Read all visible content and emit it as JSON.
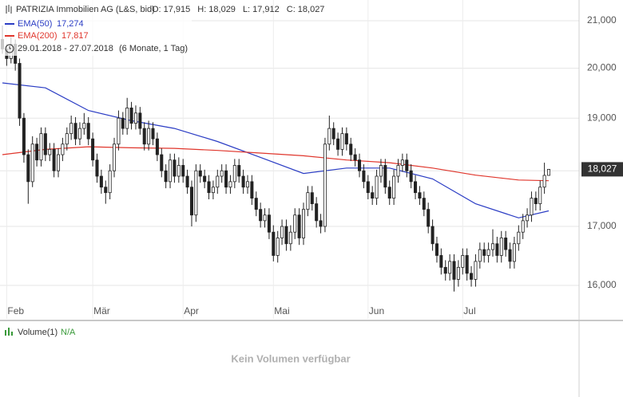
{
  "chart_data": {
    "type": "candlestick",
    "title": "PATRIZIA Immobilien AG (L&S, bid)",
    "quote": [
      {
        "label": "O:",
        "value": "17,915"
      },
      {
        "label": "H:",
        "value": "18,029"
      },
      {
        "label": "L:",
        "value": "17,912"
      },
      {
        "label": "C:",
        "value": "18,027"
      }
    ],
    "date_range": "29.01.2018 - 27.07.2018",
    "period": "(6 Monate, 1 Tag)",
    "last_price_label": "18,027",
    "last_price": 18027,
    "log_scale": true,
    "grid": true,
    "ylim": [
      15818,
      21452
    ],
    "yticks": [
      {
        "value": 21000,
        "label": "21,000"
      },
      {
        "value": 20000,
        "label": "20,000"
      },
      {
        "value": 19000,
        "label": "19,000"
      },
      {
        "value": 18000,
        "label": "18,000"
      },
      {
        "value": 17000,
        "label": "17,000"
      },
      {
        "value": 16000,
        "label": "16,000"
      }
    ],
    "months": [
      {
        "label": "Feb",
        "index": 1
      },
      {
        "label": "Mär",
        "index": 21
      },
      {
        "label": "Apr",
        "index": 42
      },
      {
        "label": "Mai",
        "index": 63
      },
      {
        "label": "Jun",
        "index": 85
      },
      {
        "label": "Jul",
        "index": 107
      }
    ],
    "candles": [
      [
        20600,
        20900,
        20300,
        20400
      ],
      [
        20400,
        20500,
        20050,
        20200
      ],
      [
        20200,
        20650,
        20100,
        20500
      ],
      [
        20500,
        20600,
        19950,
        20100
      ],
      [
        20100,
        20200,
        18850,
        19000
      ],
      [
        19000,
        19100,
        18150,
        18300
      ],
      [
        18300,
        18400,
        17400,
        17800
      ],
      [
        17800,
        18650,
        17700,
        18500
      ],
      [
        18500,
        18620,
        18080,
        18200
      ],
      [
        18200,
        18820,
        18080,
        18700
      ],
      [
        18700,
        18820,
        18180,
        18300
      ],
      [
        18300,
        18520,
        18180,
        18400
      ],
      [
        18400,
        18520,
        17880,
        18000
      ],
      [
        18000,
        18420,
        17880,
        18300
      ],
      [
        18300,
        18620,
        18180,
        18500
      ],
      [
        18500,
        18820,
        18380,
        18700
      ],
      [
        18700,
        19050,
        18580,
        18900
      ],
      [
        18900,
        19020,
        18480,
        18600
      ],
      [
        18600,
        18920,
        18480,
        18800
      ],
      [
        18800,
        19100,
        18680,
        18900
      ],
      [
        18900,
        19020,
        18480,
        18600
      ],
      [
        18600,
        18720,
        18080,
        18200
      ],
      [
        18200,
        18320,
        17780,
        17900
      ],
      [
        17900,
        18020,
        17580,
        17700
      ],
      [
        17700,
        17820,
        17400,
        17600
      ],
      [
        17600,
        18120,
        17480,
        18000
      ],
      [
        18000,
        18620,
        17880,
        18500
      ],
      [
        18500,
        19150,
        18380,
        19000
      ],
      [
        19000,
        19120,
        18680,
        18800
      ],
      [
        18800,
        19400,
        18680,
        19200
      ],
      [
        19200,
        19320,
        18780,
        18900
      ],
      [
        18900,
        19250,
        18780,
        19100
      ],
      [
        19100,
        19220,
        18680,
        18800
      ],
      [
        18800,
        18920,
        18380,
        18500
      ],
      [
        18500,
        18950,
        18380,
        18800
      ],
      [
        18800,
        18920,
        18480,
        18600
      ],
      [
        18600,
        18720,
        18180,
        18300
      ],
      [
        18300,
        18420,
        17880,
        18000
      ],
      [
        18000,
        18120,
        17680,
        17800
      ],
      [
        17800,
        18320,
        17680,
        18200
      ],
      [
        18200,
        18320,
        17780,
        17900
      ],
      [
        17900,
        18250,
        17780,
        18100
      ],
      [
        18100,
        18220,
        17780,
        17900
      ],
      [
        17900,
        18020,
        17580,
        17700
      ],
      [
        17700,
        17820,
        17000,
        17200
      ],
      [
        17200,
        18120,
        17080,
        18000
      ],
      [
        18000,
        18120,
        17780,
        17900
      ],
      [
        17900,
        18020,
        17680,
        17800
      ],
      [
        17800,
        17920,
        17480,
        17600
      ],
      [
        17600,
        17820,
        17480,
        17700
      ],
      [
        17700,
        18020,
        17580,
        17900
      ],
      [
        17900,
        18120,
        17780,
        18000
      ],
      [
        18000,
        18120,
        17580,
        17700
      ],
      [
        17700,
        17920,
        17580,
        17800
      ],
      [
        17800,
        18220,
        17680,
        18100
      ],
      [
        18100,
        18220,
        17780,
        17900
      ],
      [
        17900,
        18020,
        17580,
        17700
      ],
      [
        17700,
        17920,
        17580,
        17800
      ],
      [
        17800,
        17920,
        17380,
        17500
      ],
      [
        17500,
        17620,
        17180,
        17300
      ],
      [
        17300,
        17420,
        16980,
        17100
      ],
      [
        17100,
        17320,
        16980,
        17200
      ],
      [
        17200,
        17320,
        16780,
        16900
      ],
      [
        16900,
        17020,
        16400,
        16500
      ],
      [
        16500,
        16920,
        16380,
        16800
      ],
      [
        16800,
        17120,
        16680,
        17000
      ],
      [
        17000,
        17120,
        16580,
        16700
      ],
      [
        16700,
        17020,
        16580,
        16900
      ],
      [
        16900,
        17320,
        16780,
        17200
      ],
      [
        17200,
        17320,
        16680,
        16800
      ],
      [
        16800,
        17420,
        16680,
        17300
      ],
      [
        17300,
        17720,
        17180,
        17600
      ],
      [
        17600,
        17720,
        17280,
        17400
      ],
      [
        17400,
        17520,
        16980,
        17100
      ],
      [
        17100,
        17220,
        16880,
        17000
      ],
      [
        17000,
        18620,
        16900,
        18500
      ],
      [
        18500,
        19050,
        18380,
        18800
      ],
      [
        18800,
        18920,
        18480,
        18600
      ],
      [
        18600,
        18720,
        18280,
        18400
      ],
      [
        18400,
        18820,
        18280,
        18700
      ],
      [
        18700,
        18820,
        18380,
        18500
      ],
      [
        18500,
        18620,
        18180,
        18300
      ],
      [
        18300,
        18420,
        18080,
        18200
      ],
      [
        18200,
        18320,
        17880,
        18000
      ],
      [
        18000,
        18120,
        17680,
        17800
      ],
      [
        17800,
        17920,
        17480,
        17600
      ],
      [
        17600,
        17720,
        17380,
        17500
      ],
      [
        17500,
        18020,
        17380,
        17900
      ],
      [
        17900,
        18220,
        17780,
        18100
      ],
      [
        18100,
        18220,
        17580,
        17700
      ],
      [
        17700,
        17820,
        17380,
        17500
      ],
      [
        17500,
        18020,
        17380,
        17900
      ],
      [
        17900,
        18220,
        17780,
        18100
      ],
      [
        18100,
        18320,
        17980,
        18200
      ],
      [
        18200,
        18320,
        17880,
        18000
      ],
      [
        18000,
        18120,
        17680,
        17800
      ],
      [
        17800,
        17920,
        17480,
        17600
      ],
      [
        17600,
        17720,
        17380,
        17500
      ],
      [
        17500,
        17620,
        17180,
        17300
      ],
      [
        17300,
        17420,
        16880,
        17000
      ],
      [
        17000,
        17120,
        16580,
        16700
      ],
      [
        16700,
        16820,
        16380,
        16500
      ],
      [
        16500,
        16620,
        16180,
        16300
      ],
      [
        16300,
        16420,
        16080,
        16200
      ],
      [
        16200,
        16520,
        16080,
        16400
      ],
      [
        16400,
        16520,
        15900,
        16100
      ],
      [
        16100,
        16420,
        15980,
        16300
      ],
      [
        16300,
        16620,
        16180,
        16500
      ],
      [
        16500,
        16620,
        16080,
        16200
      ],
      [
        16200,
        16320,
        15980,
        16100
      ],
      [
        16100,
        16520,
        15980,
        16400
      ],
      [
        16400,
        16720,
        16280,
        16600
      ],
      [
        16600,
        16720,
        16380,
        16500
      ],
      [
        16500,
        16720,
        16380,
        16600
      ],
      [
        16600,
        16950,
        16480,
        16700
      ],
      [
        16700,
        16820,
        16380,
        16500
      ],
      [
        16500,
        16920,
        16380,
        16800
      ],
      [
        16800,
        16920,
        16480,
        16600
      ],
      [
        16600,
        16720,
        16280,
        16400
      ],
      [
        16400,
        16820,
        16280,
        16700
      ],
      [
        16700,
        17020,
        16580,
        16900
      ],
      [
        16900,
        17220,
        16780,
        17100
      ],
      [
        17100,
        17320,
        16980,
        17200
      ],
      [
        17200,
        17620,
        17080,
        17500
      ],
      [
        17500,
        17620,
        17280,
        17400
      ],
      [
        17400,
        17820,
        17280,
        17700
      ],
      [
        17700,
        18150,
        17580,
        17915
      ],
      [
        17915,
        18029,
        17912,
        18027
      ]
    ],
    "series": [
      {
        "name": "EMA(50)",
        "value_label": "17,274",
        "color": "#2a3cc4",
        "index": [
          0,
          10,
          20,
          30,
          40,
          50,
          60,
          70,
          80,
          90,
          100,
          110,
          120,
          127
        ],
        "values": [
          19700,
          19600,
          19150,
          18950,
          18800,
          18550,
          18250,
          17950,
          18050,
          18050,
          17850,
          17400,
          17150,
          17274
        ]
      },
      {
        "name": "EMA(200)",
        "value_label": "17,817",
        "color": "#e0362c",
        "index": [
          0,
          10,
          20,
          30,
          40,
          50,
          60,
          70,
          80,
          90,
          100,
          110,
          120,
          127
        ],
        "values": [
          18300,
          18400,
          18450,
          18430,
          18420,
          18380,
          18330,
          18280,
          18200,
          18150,
          18050,
          17920,
          17830,
          17817
        ]
      }
    ],
    "volume": {
      "name": "Volume(1)",
      "value": "N/A",
      "message": "Kein Volumen verfügbar"
    }
  }
}
